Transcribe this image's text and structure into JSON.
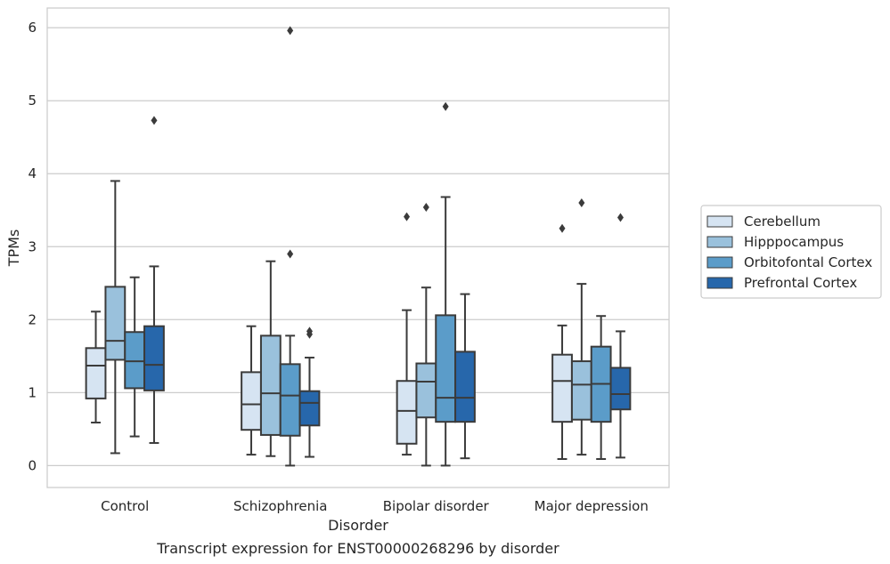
{
  "chart_data": {
    "type": "box",
    "title": "Transcript expression for ENST00000268296 by disorder",
    "xlabel": "Disorder",
    "ylabel": "TPMs",
    "ylim": [
      -0.3,
      6.27
    ],
    "yticks": [
      0,
      1,
      2,
      3,
      4,
      5,
      6
    ],
    "grid": true,
    "legend_position": "right",
    "categories": [
      "Control",
      "Schizophrenia",
      "Bipolar disorder",
      "Major depression"
    ],
    "series": [
      {
        "name": "Cerebellum",
        "color": "#d6e4f2",
        "boxes": [
          {
            "whislo": 0.59,
            "q1": 0.92,
            "med": 1.37,
            "q3": 1.61,
            "whishi": 2.11,
            "fliers": []
          },
          {
            "whislo": 0.15,
            "q1": 0.49,
            "med": 0.84,
            "q3": 1.28,
            "whishi": 1.91,
            "fliers": []
          },
          {
            "whislo": 0.15,
            "q1": 0.3,
            "med": 0.75,
            "q3": 1.16,
            "whishi": 2.13,
            "fliers": [
              3.41
            ]
          },
          {
            "whislo": 0.09,
            "q1": 0.6,
            "med": 1.16,
            "q3": 1.52,
            "whishi": 1.92,
            "fliers": [
              3.25
            ]
          }
        ]
      },
      {
        "name": "Hipppocampus",
        "color": "#9ac1dc",
        "boxes": [
          {
            "whislo": 0.17,
            "q1": 1.45,
            "med": 1.71,
            "q3": 2.45,
            "whishi": 3.9,
            "fliers": []
          },
          {
            "whislo": 0.13,
            "q1": 0.42,
            "med": 0.99,
            "q3": 1.78,
            "whishi": 2.8,
            "fliers": []
          },
          {
            "whislo": 0.0,
            "q1": 0.66,
            "med": 1.15,
            "q3": 1.4,
            "whishi": 2.44,
            "fliers": [
              3.54
            ]
          },
          {
            "whislo": 0.15,
            "q1": 0.63,
            "med": 1.11,
            "q3": 1.43,
            "whishi": 2.49,
            "fliers": [
              3.6
            ]
          }
        ]
      },
      {
        "name": "Orbitofontal Cortex",
        "color": "#5b9cc9",
        "boxes": [
          {
            "whislo": 0.4,
            "q1": 1.06,
            "med": 1.43,
            "q3": 1.83,
            "whishi": 2.58,
            "fliers": []
          },
          {
            "whislo": 0.0,
            "q1": 0.41,
            "med": 0.96,
            "q3": 1.39,
            "whishi": 1.78,
            "fliers": [
              2.9,
              5.96
            ]
          },
          {
            "whislo": 0.0,
            "q1": 0.6,
            "med": 0.93,
            "q3": 2.06,
            "whishi": 3.68,
            "fliers": [
              4.92
            ]
          },
          {
            "whislo": 0.09,
            "q1": 0.6,
            "med": 1.12,
            "q3": 1.63,
            "whishi": 2.05,
            "fliers": []
          }
        ]
      },
      {
        "name": "Prefrontal Cortex",
        "color": "#2767ab",
        "boxes": [
          {
            "whislo": 0.31,
            "q1": 1.03,
            "med": 1.38,
            "q3": 1.91,
            "whishi": 2.73,
            "fliers": [
              4.73
            ]
          },
          {
            "whislo": 0.12,
            "q1": 0.55,
            "med": 0.86,
            "q3": 1.02,
            "whishi": 1.48,
            "fliers": [
              1.8,
              1.84
            ]
          },
          {
            "whislo": 0.1,
            "q1": 0.6,
            "med": 0.93,
            "q3": 1.56,
            "whishi": 2.35,
            "fliers": []
          },
          {
            "whislo": 0.11,
            "q1": 0.77,
            "med": 0.98,
            "q3": 1.34,
            "whishi": 1.84,
            "fliers": [
              3.4
            ]
          }
        ]
      }
    ]
  }
}
